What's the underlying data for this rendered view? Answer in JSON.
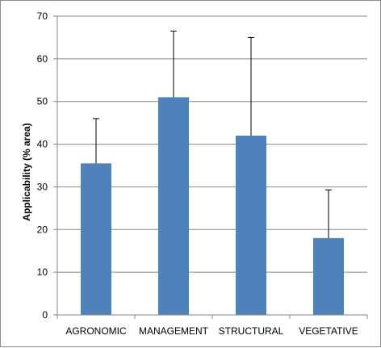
{
  "chart_data": {
    "type": "bar",
    "title": "",
    "xlabel": "",
    "ylabel": "Applicability (% area)",
    "categories": [
      "AGRONOMIC",
      "MANAGEMENT",
      "STRUCTURAL",
      "VEGETATIVE"
    ],
    "values": [
      35.5,
      51.0,
      42.0,
      18.0
    ],
    "error_upper": [
      46.0,
      66.5,
      65.0,
      29.3
    ],
    "ylim": [
      0,
      70
    ],
    "yticks": [
      "0",
      "10",
      "20",
      "30",
      "40",
      "50",
      "60",
      "70"
    ],
    "grid": true,
    "legend": "none",
    "colors": {
      "bar": "#4f81bd",
      "grid": "#868686",
      "error_bar": "#000000"
    }
  }
}
